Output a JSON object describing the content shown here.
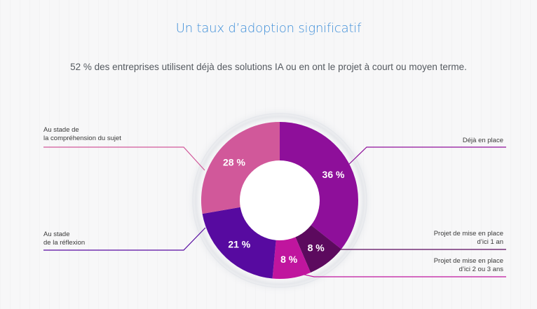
{
  "title": "Un taux d’adoption significatif",
  "subtitle": "52 % des entreprises utilisent déjà des solutions IA ou en ont le projet à court ou moyen terme.",
  "chart_data": {
    "type": "pie",
    "categories": [
      "Déjà en place",
      "Projet de mise en place\nd’ici 1 an",
      "Projet de mise en place\nd’ici 2 ou 3 ans",
      "Au stade\nde la réflexion",
      "Au stade de\nla compréhension du sujet"
    ],
    "values": [
      36,
      8,
      8,
      21,
      28
    ],
    "data_labels": [
      "36 %",
      "8 %",
      "8 %",
      "21 %",
      "28 %"
    ],
    "colors": [
      "#8e0f9a",
      "#5c0a5e",
      "#c0159e",
      "#570aa0",
      "#d1589a"
    ],
    "start_angle_deg": 0,
    "direction": "clockwise",
    "style": "donut"
  }
}
